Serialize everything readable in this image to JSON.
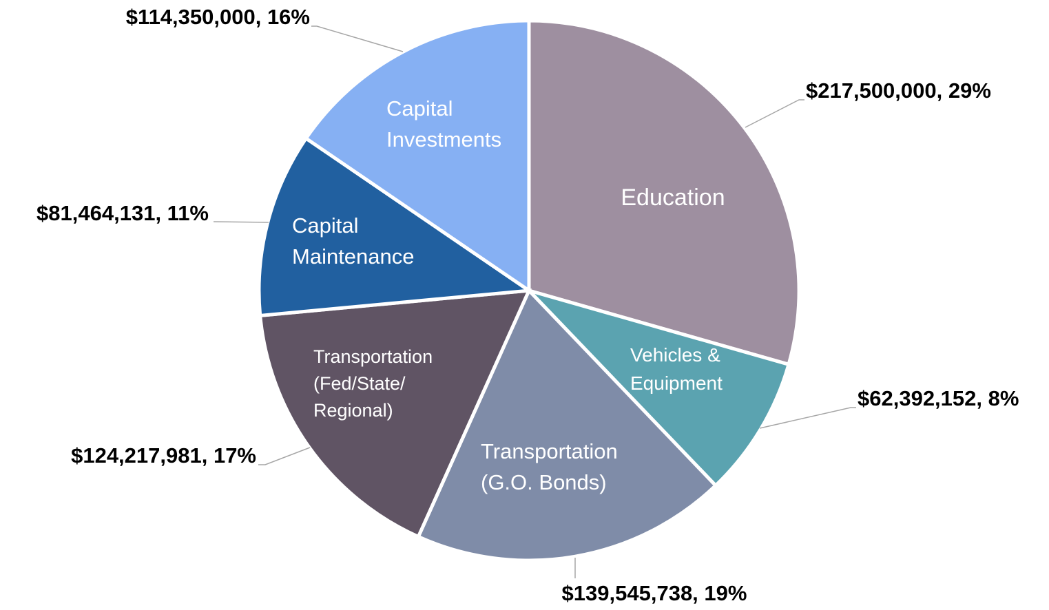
{
  "chart_data": {
    "type": "pie",
    "categories": [
      "Education",
      "Vehicles &\nEquipment",
      "Transportation\n(G.O. Bonds)",
      "Transportation\n(Fed/State/\nRegional)",
      "Capital\nMaintenance",
      "Capital\nInvestments"
    ],
    "values": [
      217500000,
      62392152,
      139545738,
      124217981,
      81464131,
      114350000
    ],
    "value_labels": [
      "$217,500,000, 29%",
      "$62,392,152, 8%",
      "$139,545,738, 19%",
      "$124,217,981, 17%",
      "$81,464,131, 11%",
      "$114,350,000, 16%"
    ],
    "colors": [
      "#9e8fa0",
      "#5ba3b0",
      "#7f8ca8",
      "#605464",
      "#2160a0",
      "#86b0f3"
    ]
  }
}
